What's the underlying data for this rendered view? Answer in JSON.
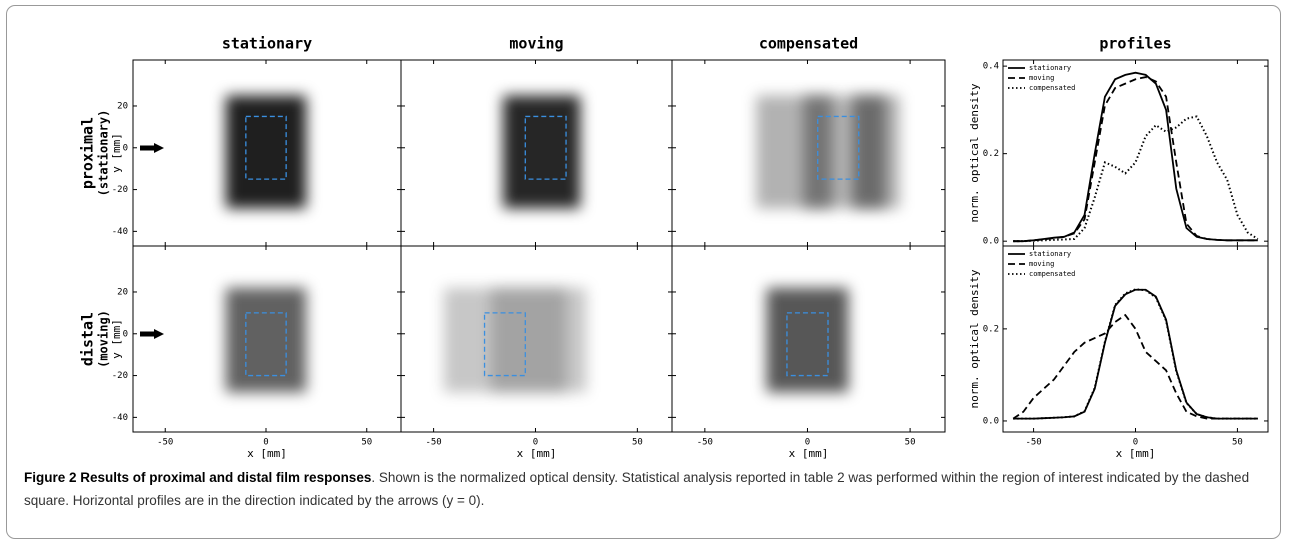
{
  "column_titles": [
    "stationary",
    "moving",
    "compensated",
    "profiles"
  ],
  "rows": [
    {
      "label": "proximal",
      "sublabel": "(stationary)"
    },
    {
      "label": "distal",
      "sublabel": "(moving)"
    }
  ],
  "images": {
    "xlabel": "x [mm]",
    "ylabel": "y [mm]",
    "xlim": [
      -66,
      67
    ],
    "ylim": [
      -47,
      42
    ],
    "xticks": [
      -50,
      0,
      50
    ],
    "yticks": [
      -40,
      -20,
      0,
      20
    ],
    "panels": [
      [
        {
          "fields": [
            {
              "x": [
                -20,
                20
              ],
              "y": [
                -29,
                25
              ],
              "density": 0.88
            }
          ],
          "roi": {
            "x": [
              -10,
              10
            ],
            "y": [
              -15,
              15
            ]
          }
        },
        {
          "fields": [
            {
              "x": [
                -16,
                22
              ],
              "y": [
                -29,
                25
              ],
              "density": 0.85
            }
          ],
          "roi": {
            "x": [
              -5,
              15
            ],
            "y": [
              -15,
              15
            ]
          }
        },
        {
          "fields": [
            {
              "x": [
                -25,
                45
              ],
              "y": [
                -29,
                25
              ],
              "density": 0.3
            },
            {
              "x": [
                -2,
                12
              ],
              "y": [
                -29,
                25
              ],
              "density": 0.35
            },
            {
              "x": [
                22,
                38
              ],
              "y": [
                -29,
                25
              ],
              "density": 0.4
            }
          ],
          "roi": {
            "x": [
              5,
              25
            ],
            "y": [
              -15,
              15
            ]
          }
        }
      ],
      [
        {
          "fields": [
            {
              "x": [
                -20,
                20
              ],
              "y": [
                -28,
                22
              ],
              "density": 0.62
            }
          ],
          "roi": {
            "x": [
              -10,
              10
            ],
            "y": [
              -20,
              10
            ]
          }
        },
        {
          "fields": [
            {
              "x": [
                -45,
                25
              ],
              "y": [
                -28,
                22
              ],
              "density": 0.22
            },
            {
              "x": [
                -22,
                15
              ],
              "y": [
                -28,
                22
              ],
              "density": 0.18
            }
          ],
          "roi": {
            "x": [
              -25,
              -5
            ],
            "y": [
              -20,
              10
            ]
          }
        },
        {
          "fields": [
            {
              "x": [
                -20,
                20
              ],
              "y": [
                -28,
                22
              ],
              "density": 0.66
            }
          ],
          "roi": {
            "x": [
              -10,
              10
            ],
            "y": [
              -20,
              10
            ]
          }
        }
      ]
    ]
  },
  "profiles": [
    {
      "type": "line",
      "xlabel": "x [mm]",
      "ylabel": "norm. optical density",
      "xlim": [
        -65,
        65
      ],
      "ylim": [
        -0.011,
        0.414
      ],
      "xticks": [
        -50,
        0,
        50
      ],
      "yticks": [
        {
          "value": 0,
          "label": "0.0"
        },
        0.2,
        0.4
      ],
      "x": [
        -60,
        -55,
        -50,
        -45,
        -40,
        -35,
        -30,
        -25,
        -20,
        -15,
        -10,
        -5,
        0,
        5,
        10,
        15,
        20,
        25,
        30,
        35,
        40,
        45,
        50,
        55,
        60
      ],
      "series": [
        {
          "name": "stationary",
          "color": "#000000",
          "dash": "solid",
          "values": [
            0,
            0,
            0.002,
            0.005,
            0.008,
            0.01,
            0.02,
            0.06,
            0.2,
            0.33,
            0.37,
            0.38,
            0.385,
            0.38,
            0.36,
            0.3,
            0.12,
            0.03,
            0.01,
            0.005,
            0.003,
            0.002,
            0.002,
            0.002,
            0.002
          ]
        },
        {
          "name": "moving",
          "color": "#000000",
          "dash": "dashed",
          "values": [
            0,
            0,
            0.002,
            0.004,
            0.007,
            0.01,
            0.018,
            0.05,
            0.18,
            0.31,
            0.35,
            0.36,
            0.37,
            0.375,
            0.365,
            0.33,
            0.18,
            0.04,
            0.012,
            0.005,
            0.003,
            0.002,
            0.002,
            0.002,
            0.002
          ]
        },
        {
          "name": "compensated",
          "color": "#000000",
          "dash": "dotted",
          "values": [
            0,
            0,
            0.001,
            0.002,
            0.003,
            0.004,
            0.005,
            0.03,
            0.1,
            0.18,
            0.17,
            0.155,
            0.18,
            0.24,
            0.265,
            0.25,
            0.26,
            0.28,
            0.285,
            0.24,
            0.18,
            0.14,
            0.06,
            0.02,
            0.005
          ]
        }
      ]
    },
    {
      "type": "line",
      "xlabel": "x [mm]",
      "ylabel": "norm. optical density",
      "xlim": [
        -65,
        65
      ],
      "ylim": [
        -0.024,
        0.38
      ],
      "xticks": [
        -50,
        0,
        50
      ],
      "yticks": [
        {
          "value": 0,
          "label": "0.0"
        },
        0.2
      ],
      "x": [
        -60,
        -55,
        -50,
        -45,
        -40,
        -35,
        -30,
        -25,
        -20,
        -15,
        -10,
        -5,
        0,
        5,
        10,
        15,
        20,
        25,
        30,
        35,
        40,
        45,
        50,
        55,
        60
      ],
      "series": [
        {
          "name": "stationary",
          "color": "#000000",
          "dash": "solid",
          "values": [
            0.005,
            0.005,
            0.005,
            0.006,
            0.007,
            0.008,
            0.01,
            0.02,
            0.07,
            0.17,
            0.25,
            0.275,
            0.285,
            0.285,
            0.27,
            0.22,
            0.11,
            0.04,
            0.015,
            0.008,
            0.005,
            0.005,
            0.005,
            0.005,
            0.005
          ]
        },
        {
          "name": "moving",
          "color": "#000000",
          "dash": "dashed",
          "values": [
            0.005,
            0.02,
            0.05,
            0.07,
            0.09,
            0.12,
            0.15,
            0.17,
            0.18,
            0.19,
            0.215,
            0.23,
            0.2,
            0.15,
            0.13,
            0.11,
            0.06,
            0.02,
            0.01,
            0.005,
            0.005,
            0.005,
            0.005,
            0.005,
            0.005
          ]
        },
        {
          "name": "compensated",
          "color": "#000000",
          "dash": "dotted",
          "values": [
            0.005,
            0.005,
            0.005,
            0.006,
            0.007,
            0.008,
            0.01,
            0.021,
            0.072,
            0.172,
            0.252,
            0.277,
            0.286,
            0.284,
            0.268,
            0.218,
            0.108,
            0.039,
            0.015,
            0.008,
            0.005,
            0.005,
            0.005,
            0.005,
            0.005
          ]
        }
      ]
    }
  ],
  "caption": {
    "title": "Figure 2 Results of proximal and distal film responses",
    "text": ". Shown is the normalized optical density. Statistical analysis reported in table 2 was performed within the region of interest indicated by the dashed square. Horizontal profiles are in the direction indicated by the arrows (y = 0)."
  }
}
